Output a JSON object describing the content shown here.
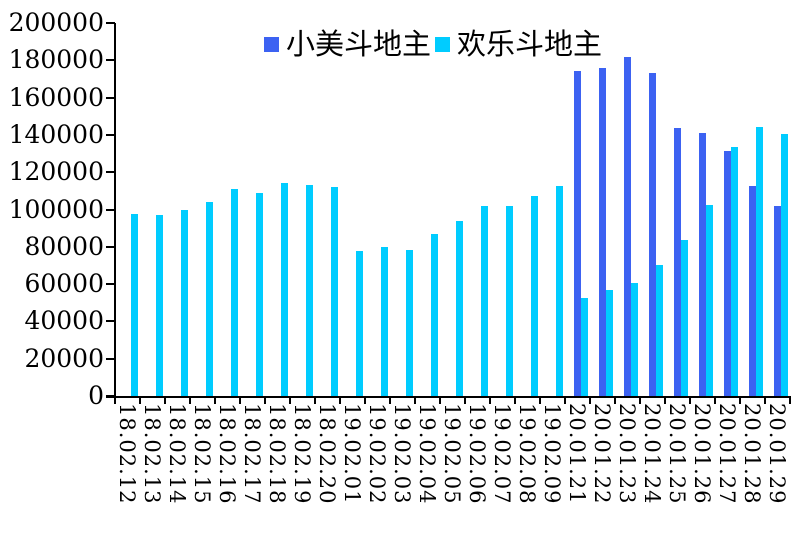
{
  "chart_data": {
    "type": "bar",
    "title": "",
    "xlabel": "",
    "ylabel": "",
    "ylim": [
      0,
      200000
    ],
    "ytick_interval": 20000,
    "y_tick_labels": [
      "0",
      "20000",
      "40000",
      "60000",
      "80000",
      "100000",
      "120000",
      "140000",
      "160000",
      "180000",
      "200000"
    ],
    "grid": false,
    "legend_position": "top-center",
    "categories": [
      "18.02.12",
      "18.02.13",
      "18.02.14",
      "18.02.15",
      "18.02.16",
      "18.02.17",
      "18.02.18",
      "18.02.19",
      "18.02.20",
      "19.02.01",
      "19.02.02",
      "19.02.03",
      "19.02.04",
      "19.02.05",
      "19.02.06",
      "19.02.07",
      "19.02.08",
      "19.02.09",
      "20.01.21",
      "20.01.22",
      "20.01.23",
      "20.01.24",
      "20.01.25",
      "20.01.26",
      "20.01.27",
      "20.01.28",
      "20.01.29"
    ],
    "series": [
      {
        "name": "小美斗地主",
        "color": "#3c62f2",
        "values": [
          0,
          0,
          0,
          0,
          0,
          0,
          0,
          0,
          0,
          0,
          0,
          0,
          0,
          0,
          0,
          0,
          0,
          0,
          174000,
          176000,
          182000,
          173000,
          143500,
          141000,
          131500,
          112500,
          102000
        ]
      },
      {
        "name": "欢乐斗地主",
        "color": "#00ccff",
        "values": [
          97500,
          97000,
          100000,
          104000,
          111000,
          109000,
          114000,
          113000,
          112000,
          78000,
          80000,
          78500,
          87000,
          94000,
          102000,
          102000,
          107500,
          112500,
          52500,
          57000,
          60500,
          70000,
          83500,
          102500,
          133500,
          144000,
          140500
        ]
      }
    ]
  },
  "colors": {
    "axis": "#000000",
    "text": "#000000",
    "background": "#ffffff"
  }
}
